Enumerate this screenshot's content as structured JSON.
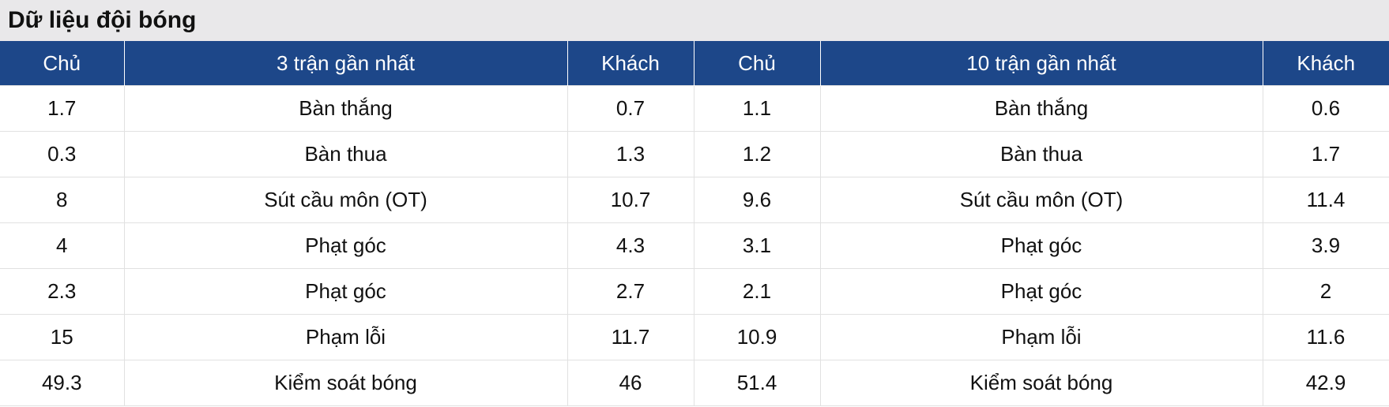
{
  "header": {
    "title": "Dữ liệu đội bóng"
  },
  "table": {
    "columns": [
      "Chủ",
      "3 trận gần nhất",
      "Khách",
      "Chủ",
      "10 trận gần nhất",
      "Khách"
    ],
    "rows": [
      [
        1.7,
        "Bàn thắng",
        0.7,
        1.1,
        "Bàn thắng",
        0.6
      ],
      [
        0.3,
        "Bàn thua",
        1.3,
        1.2,
        "Bàn thua",
        1.7
      ],
      [
        8,
        "Sút cầu môn (OT)",
        10.7,
        9.6,
        "Sút cầu môn (OT)",
        11.4
      ],
      [
        4,
        "Phạt góc",
        4.3,
        3.1,
        "Phạt góc",
        3.9
      ],
      [
        2.3,
        "Phạt góc",
        2.7,
        2.1,
        "Phạt góc",
        2
      ],
      [
        15,
        "Phạm lỗi",
        11.7,
        10.9,
        "Phạm lỗi",
        11.6
      ],
      [
        49.3,
        "Kiểm soát bóng",
        46,
        51.4,
        "Kiểm soát bóng",
        42.9
      ]
    ]
  }
}
